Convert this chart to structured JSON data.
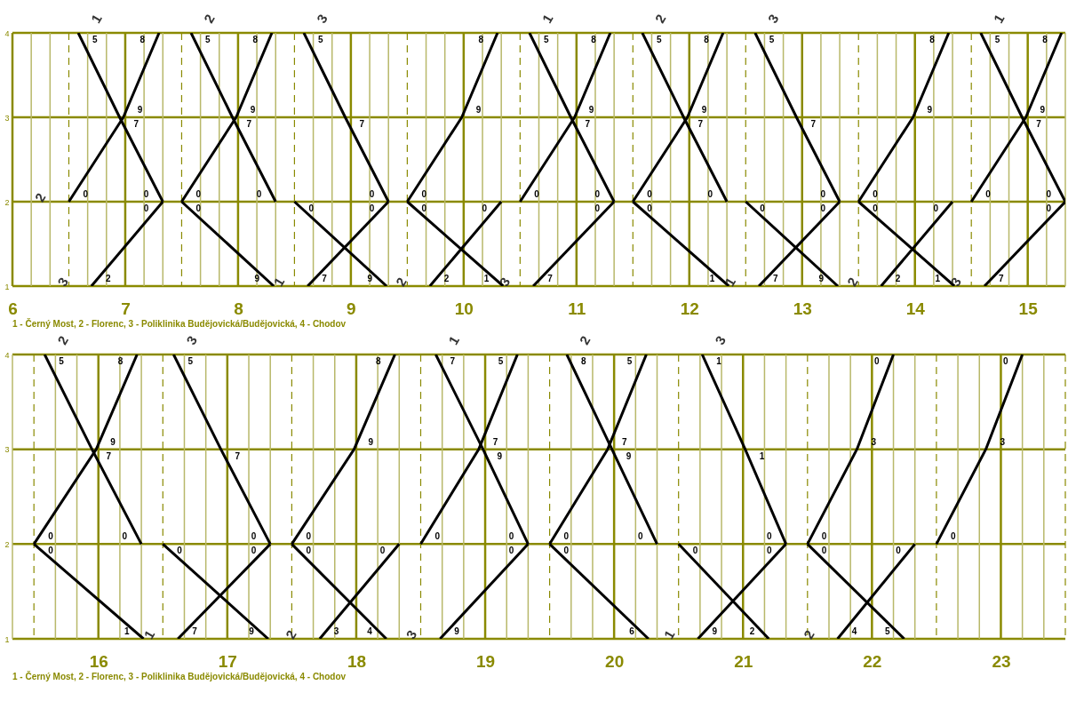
{
  "chart_data": [
    {
      "type": "line",
      "xlim": [
        6,
        15.3333
      ],
      "ylim": [
        1,
        4
      ],
      "grid": true,
      "legend": false,
      "xticks": [
        6,
        {
          "value": 6.1667,
          "label": null
        },
        {
          "value": 6.3333,
          "label": null
        },
        {
          "value": 6.5,
          "label": null
        },
        {
          "value": 6.6667,
          "label": null
        },
        {
          "value": 6.8333,
          "label": null
        },
        7,
        {
          "value": 7.1667,
          "label": null
        },
        {
          "value": 7.3333,
          "label": null
        },
        {
          "value": 7.5,
          "label": null
        },
        {
          "value": 7.6667,
          "label": null
        },
        {
          "value": 7.8333,
          "label": null
        },
        8,
        {
          "value": 8.1667,
          "label": null
        },
        {
          "value": 8.3333,
          "label": null
        },
        {
          "value": 8.5,
          "label": null
        },
        {
          "value": 8.6667,
          "label": null
        },
        {
          "value": 8.8333,
          "label": null
        },
        9,
        {
          "value": 9.1667,
          "label": null
        },
        {
          "value": 9.3333,
          "label": null
        },
        {
          "value": 9.5,
          "label": null
        },
        {
          "value": 9.6667,
          "label": null
        },
        {
          "value": 9.8333,
          "label": null
        },
        10,
        {
          "value": 10.1667,
          "label": null
        },
        {
          "value": 10.3333,
          "label": null
        },
        {
          "value": 10.5,
          "label": null
        },
        {
          "value": 10.6667,
          "label": null
        },
        {
          "value": 10.8333,
          "label": null
        },
        11,
        {
          "value": 11.1667,
          "label": null
        },
        {
          "value": 11.3333,
          "label": null
        },
        {
          "value": 11.5,
          "label": null
        },
        {
          "value": 11.6667,
          "label": null
        },
        {
          "value": 11.8333,
          "label": null
        },
        12,
        {
          "value": 12.1667,
          "label": null
        },
        {
          "value": 12.3333,
          "label": null
        },
        {
          "value": 12.5,
          "label": null
        },
        {
          "value": 12.6667,
          "label": null
        },
        {
          "value": 12.8333,
          "label": null
        },
        13,
        {
          "value": 13.1667,
          "label": null
        },
        {
          "value": 13.3333,
          "label": null
        },
        {
          "value": 13.5,
          "label": null
        },
        {
          "value": 13.6667,
          "label": null
        },
        {
          "value": 13.8333,
          "label": null
        },
        14,
        {
          "value": 14.1667,
          "label": null
        },
        {
          "value": 14.3333,
          "label": null
        },
        {
          "value": 14.5,
          "label": null
        },
        {
          "value": 14.6667,
          "label": null
        },
        {
          "value": 14.8333,
          "label": null
        },
        15,
        {
          "value": 15.1667,
          "label": null
        },
        {
          "value": 15.3333,
          "label": null
        }
      ],
      "yticks": [
        1,
        2,
        3,
        4
      ],
      "series": [
        {
          "name": "1",
          "color": "#000000",
          "x": [
            6.5833,
            6.95,
            7.3333
          ],
          "values": [
            4,
            3,
            2
          ]
        },
        {
          "name": "2",
          "color": "#000000",
          "x": [
            6.5,
            6.9833,
            7.3
          ],
          "values": [
            2,
            3,
            4
          ]
        },
        {
          "name": "3",
          "color": "#000000",
          "x": [
            6.7,
            7.3333
          ],
          "values": [
            1,
            2
          ]
        },
        {
          "name": "2",
          "color": "#000000",
          "x": [
            7.5833,
            7.95,
            8.3333
          ],
          "values": [
            4,
            3,
            2
          ]
        },
        {
          "color": "#000000",
          "x": [
            7.5,
            7.9833,
            8.3
          ],
          "values": [
            2,
            3,
            4
          ]
        },
        {
          "color": "#000000",
          "x": [
            7.5,
            8.3167
          ],
          "values": [
            2,
            1
          ]
        },
        {
          "name": "3",
          "color": "#000000",
          "x": [
            8.5833,
            8.95,
            9.3333
          ],
          "values": [
            4,
            3,
            2
          ]
        },
        {
          "color": "#000000",
          "x": [
            8.5,
            9.3167
          ],
          "values": [
            2,
            1
          ]
        },
        {
          "name": "1",
          "color": "#000000",
          "x": [
            8.6167,
            9.3333
          ],
          "values": [
            1,
            2
          ]
        },
        {
          "color": "#000000",
          "x": [
            9.5,
            9.9833,
            10.3
          ],
          "values": [
            2,
            3,
            4
          ]
        },
        {
          "color": "#000000",
          "x": [
            9.5,
            10.35
          ],
          "values": [
            2,
            1
          ]
        },
        {
          "name": "2",
          "color": "#000000",
          "x": [
            9.7,
            10.3333
          ],
          "values": [
            1,
            2
          ]
        },
        {
          "name": "1",
          "color": "#000000",
          "x": [
            10.5833,
            10.95,
            11.3333
          ],
          "values": [
            4,
            3,
            2
          ]
        },
        {
          "color": "#000000",
          "x": [
            10.5,
            10.9833,
            11.3
          ],
          "values": [
            2,
            3,
            4
          ]
        },
        {
          "name": "3",
          "color": "#000000",
          "x": [
            10.6167,
            11.3333
          ],
          "values": [
            1,
            2
          ]
        },
        {
          "name": "2",
          "color": "#000000",
          "x": [
            11.5833,
            11.95,
            12.3333
          ],
          "values": [
            4,
            3,
            2
          ]
        },
        {
          "color": "#000000",
          "x": [
            11.5,
            11.9833,
            12.3
          ],
          "values": [
            2,
            3,
            4
          ]
        },
        {
          "color": "#000000",
          "x": [
            11.5,
            12.35
          ],
          "values": [
            2,
            1
          ]
        },
        {
          "name": "3",
          "color": "#000000",
          "x": [
            12.5833,
            12.95,
            13.3333
          ],
          "values": [
            4,
            3,
            2
          ]
        },
        {
          "color": "#000000",
          "x": [
            12.5,
            13.3167
          ],
          "values": [
            2,
            1
          ]
        },
        {
          "name": "1",
          "color": "#000000",
          "x": [
            12.6167,
            13.3333
          ],
          "values": [
            1,
            2
          ]
        },
        {
          "color": "#000000",
          "x": [
            13.5,
            13.9833,
            14.3
          ],
          "values": [
            2,
            3,
            4
          ]
        },
        {
          "color": "#000000",
          "x": [
            13.5,
            14.35
          ],
          "values": [
            2,
            1
          ]
        },
        {
          "name": "2",
          "color": "#000000",
          "x": [
            13.7,
            14.3333
          ],
          "values": [
            1,
            2
          ]
        },
        {
          "name": "1",
          "color": "#000000",
          "x": [
            14.5833,
            14.95,
            15.3333
          ],
          "values": [
            4,
            3,
            2
          ]
        },
        {
          "color": "#000000",
          "x": [
            14.5,
            14.9833,
            15.3
          ],
          "values": [
            2,
            3,
            4
          ]
        },
        {
          "name": "3",
          "color": "#000000",
          "x": [
            14.6167,
            15.3333
          ],
          "values": [
            1,
            2
          ]
        }
      ],
      "annotations": [
        "1 - Černý Most, 2 - Florenc, 3 - Poliklinika Budějovická/Budějovická, 4 - Chodov",
        {
          "text": "5",
          "x": 6.5833,
          "y": 4
        },
        {
          "text": "7",
          "x": 6.95,
          "y": 3
        },
        {
          "text": "0",
          "x": 7.3333,
          "y": 2
        },
        {
          "text": "0",
          "x": 6.5,
          "y": 2
        },
        {
          "text": "9",
          "x": 6.9833,
          "y": 3
        },
        {
          "text": "8",
          "x": 7.3,
          "y": 4
        },
        {
          "text": "2",
          "x": 6.7,
          "y": 1
        },
        {
          "text": "0",
          "x": 7.3333,
          "y": 2
        },
        {
          "text": "5",
          "x": 7.5833,
          "y": 4
        },
        {
          "text": "7",
          "x": 7.95,
          "y": 3
        },
        {
          "text": "0",
          "x": 8.3333,
          "y": 2
        },
        {
          "text": "0",
          "x": 7.5,
          "y": 2
        },
        {
          "text": "9",
          "x": 7.9833,
          "y": 3
        },
        {
          "text": "8",
          "x": 8.3,
          "y": 4
        },
        {
          "text": "0",
          "x": 7.5,
          "y": 2
        },
        {
          "text": "9",
          "x": 8.3167,
          "y": 1
        },
        {
          "text": "5",
          "x": 8.5833,
          "y": 4
        },
        {
          "text": "7",
          "x": 8.95,
          "y": 3
        },
        {
          "text": "0",
          "x": 9.3333,
          "y": 2
        },
        {
          "text": "0",
          "x": 8.5,
          "y": 2
        },
        {
          "text": "9",
          "x": 9.3167,
          "y": 1
        },
        {
          "text": "7",
          "x": 8.6167,
          "y": 1
        },
        {
          "text": "0",
          "x": 9.3333,
          "y": 2
        },
        {
          "text": "0",
          "x": 9.5,
          "y": 2
        },
        {
          "text": "9",
          "x": 9.9833,
          "y": 3
        },
        {
          "text": "8",
          "x": 10.3,
          "y": 4
        },
        {
          "text": "0",
          "x": 9.5,
          "y": 2
        },
        {
          "text": "1",
          "x": 10.35,
          "y": 1
        },
        {
          "text": "2",
          "x": 9.7,
          "y": 1
        },
        {
          "text": "0",
          "x": 10.3333,
          "y": 2
        },
        {
          "text": "5",
          "x": 10.5833,
          "y": 4
        },
        {
          "text": "7",
          "x": 10.95,
          "y": 3
        },
        {
          "text": "0",
          "x": 11.3333,
          "y": 2
        },
        {
          "text": "0",
          "x": 10.5,
          "y": 2
        },
        {
          "text": "9",
          "x": 10.9833,
          "y": 3
        },
        {
          "text": "8",
          "x": 11.3,
          "y": 4
        },
        {
          "text": "7",
          "x": 10.6167,
          "y": 1
        },
        {
          "text": "0",
          "x": 11.3333,
          "y": 2
        },
        {
          "text": "5",
          "x": 11.5833,
          "y": 4
        },
        {
          "text": "7",
          "x": 11.95,
          "y": 3
        },
        {
          "text": "0",
          "x": 12.3333,
          "y": 2
        },
        {
          "text": "0",
          "x": 11.5,
          "y": 2
        },
        {
          "text": "9",
          "x": 11.9833,
          "y": 3
        },
        {
          "text": "8",
          "x": 12.3,
          "y": 4
        },
        {
          "text": "0",
          "x": 11.5,
          "y": 2
        },
        {
          "text": "1",
          "x": 12.35,
          "y": 1
        },
        {
          "text": "5",
          "x": 12.5833,
          "y": 4
        },
        {
          "text": "7",
          "x": 12.95,
          "y": 3
        },
        {
          "text": "0",
          "x": 13.3333,
          "y": 2
        },
        {
          "text": "0",
          "x": 12.5,
          "y": 2
        },
        {
          "text": "9",
          "x": 13.3167,
          "y": 1
        },
        {
          "text": "7",
          "x": 12.6167,
          "y": 1
        },
        {
          "text": "0",
          "x": 13.3333,
          "y": 2
        },
        {
          "text": "0",
          "x": 13.5,
          "y": 2
        },
        {
          "text": "9",
          "x": 13.9833,
          "y": 3
        },
        {
          "text": "8",
          "x": 14.3,
          "y": 4
        },
        {
          "text": "0",
          "x": 13.5,
          "y": 2
        },
        {
          "text": "1",
          "x": 14.35,
          "y": 1
        },
        {
          "text": "2",
          "x": 13.7,
          "y": 1
        },
        {
          "text": "0",
          "x": 14.3333,
          "y": 2
        },
        {
          "text": "5",
          "x": 14.5833,
          "y": 4
        },
        {
          "text": "7",
          "x": 14.95,
          "y": 3
        },
        {
          "text": "0",
          "x": 15.3333,
          "y": 2
        },
        {
          "text": "0",
          "x": 14.5,
          "y": 2
        },
        {
          "text": "9",
          "x": 14.9833,
          "y": 3
        },
        {
          "text": "8",
          "x": 15.3,
          "y": 4
        },
        {
          "text": "7",
          "x": 14.6167,
          "y": 1
        },
        {
          "text": "0",
          "x": 15.3333,
          "y": 2
        }
      ]
    },
    {
      "type": "line",
      "xlim": [
        15.3333,
        23.5
      ],
      "ylim": [
        1,
        4
      ],
      "grid": true,
      "legend": false,
      "xticks": [
        {
          "value": 15.3333,
          "label": null
        },
        {
          "value": 15.5,
          "label": null
        },
        {
          "value": 15.6667,
          "label": null
        },
        {
          "value": 15.8333,
          "label": null
        },
        16,
        {
          "value": 16.1667,
          "label": null
        },
        {
          "value": 16.3333,
          "label": null
        },
        {
          "value": 16.5,
          "label": null
        },
        {
          "value": 16.6667,
          "label": null
        },
        {
          "value": 16.8333,
          "label": null
        },
        17,
        {
          "value": 17.1667,
          "label": null
        },
        {
          "value": 17.3333,
          "label": null
        },
        {
          "value": 17.5,
          "label": null
        },
        {
          "value": 17.6667,
          "label": null
        },
        {
          "value": 17.8333,
          "label": null
        },
        18,
        {
          "value": 18.1667,
          "label": null
        },
        {
          "value": 18.3333,
          "label": null
        },
        {
          "value": 18.5,
          "label": null
        },
        {
          "value": 18.6667,
          "label": null
        },
        {
          "value": 18.8333,
          "label": null
        },
        19,
        {
          "value": 19.1667,
          "label": null
        },
        {
          "value": 19.3333,
          "label": null
        },
        {
          "value": 19.5,
          "label": null
        },
        {
          "value": 19.6667,
          "label": null
        },
        {
          "value": 19.8333,
          "label": null
        },
        20,
        {
          "value": 20.1667,
          "label": null
        },
        {
          "value": 20.3333,
          "label": null
        },
        {
          "value": 20.5,
          "label": null
        },
        {
          "value": 20.6667,
          "label": null
        },
        {
          "value": 20.8333,
          "label": null
        },
        21,
        {
          "value": 21.1667,
          "label": null
        },
        {
          "value": 21.3333,
          "label": null
        },
        {
          "value": 21.5,
          "label": null
        },
        {
          "value": 21.6667,
          "label": null
        },
        {
          "value": 21.8333,
          "label": null
        },
        22,
        {
          "value": 22.1667,
          "label": null
        },
        {
          "value": 22.3333,
          "label": null
        },
        {
          "value": 22.5,
          "label": null
        },
        {
          "value": 22.6667,
          "label": null
        },
        {
          "value": 22.8333,
          "label": null
        },
        23,
        {
          "value": 23.1667,
          "label": null
        },
        {
          "value": 23.3333,
          "label": null
        },
        {
          "value": 23.5,
          "label": null
        }
      ],
      "yticks": [
        1,
        2,
        3,
        4
      ],
      "series": [
        {
          "color": "#000000",
          "x": [
            15.5,
            15.9833,
            16.3
          ],
          "values": [
            2,
            3,
            4
          ]
        },
        {
          "name": "2",
          "color": "#000000",
          "x": [
            15.5833,
            15.95,
            16.3333
          ],
          "values": [
            4,
            3,
            2
          ]
        },
        {
          "color": "#000000",
          "x": [
            15.5,
            16.35
          ],
          "values": [
            2,
            1
          ]
        },
        {
          "name": "3",
          "color": "#000000",
          "x": [
            16.5833,
            16.95,
            17.3333
          ],
          "values": [
            4,
            3,
            2
          ]
        },
        {
          "color": "#000000",
          "x": [
            16.5,
            17.3167
          ],
          "values": [
            2,
            1
          ]
        },
        {
          "name": "1",
          "color": "#000000",
          "x": [
            16.6167,
            17.3333
          ],
          "values": [
            1,
            2
          ]
        },
        {
          "color": "#000000",
          "x": [
            17.5,
            17.9833,
            18.3
          ],
          "values": [
            2,
            3,
            4
          ]
        },
        {
          "color": "#000000",
          "x": [
            17.5,
            18.2333
          ],
          "values": [
            2,
            1
          ]
        },
        {
          "name": "2",
          "color": "#000000",
          "x": [
            17.7167,
            18.3333
          ],
          "values": [
            1,
            2
          ]
        },
        {
          "name": "1",
          "color": "#000000",
          "x": [
            18.6167,
            18.9833,
            19.3333
          ],
          "values": [
            4,
            3,
            2
          ]
        },
        {
          "color": "#000000",
          "x": [
            18.5,
            18.95,
            19.25
          ],
          "values": [
            2,
            3,
            4
          ]
        },
        {
          "name": "3",
          "color": "#000000",
          "x": [
            18.65,
            19.3333
          ],
          "values": [
            1,
            2
          ]
        },
        {
          "color": "#000000",
          "x": [
            19.5,
            19.95,
            20.25
          ],
          "values": [
            2,
            3,
            4
          ]
        },
        {
          "name": "2",
          "color": "#000000",
          "x": [
            19.6333,
            19.9833,
            20.3333
          ],
          "values": [
            4,
            3,
            2
          ]
        },
        {
          "color": "#000000",
          "x": [
            19.5,
            20.2667
          ],
          "values": [
            2,
            1
          ]
        },
        {
          "name": "3",
          "color": "#000000",
          "x": [
            20.6833,
            21.0167,
            21.3333
          ],
          "values": [
            4,
            3,
            2
          ]
        },
        {
          "color": "#000000",
          "x": [
            20.5,
            21.2
          ],
          "values": [
            2,
            1
          ]
        },
        {
          "name": "1",
          "color": "#000000",
          "x": [
            20.65,
            21.3333
          ],
          "values": [
            1,
            2
          ]
        },
        {
          "color": "#000000",
          "x": [
            21.5,
            21.8833,
            22.1667
          ],
          "values": [
            2,
            3,
            4
          ]
        },
        {
          "color": "#000000",
          "x": [
            21.5,
            22.25
          ],
          "values": [
            2,
            1
          ]
        },
        {
          "name": "2",
          "color": "#000000",
          "x": [
            21.7333,
            22.3333
          ],
          "values": [
            1,
            2
          ]
        },
        {
          "color": "#000000",
          "x": [
            22.5,
            22.8833,
            23.1667
          ],
          "values": [
            2,
            3,
            4
          ]
        }
      ],
      "annotations": [
        "1 - Černý Most, 2 - Florenc, 3 - Poliklinika Budějovická/Budějovická, 4 - Chodov",
        {
          "text": "0",
          "x": 15.5,
          "y": 2
        },
        {
          "text": "9",
          "x": 15.9833,
          "y": 3
        },
        {
          "text": "8",
          "x": 16.3,
          "y": 4
        },
        {
          "text": "5",
          "x": 15.5833,
          "y": 4
        },
        {
          "text": "7",
          "x": 15.95,
          "y": 3
        },
        {
          "text": "0",
          "x": 16.3333,
          "y": 2
        },
        {
          "text": "0",
          "x": 15.5,
          "y": 2
        },
        {
          "text": "1",
          "x": 16.35,
          "y": 1
        },
        {
          "text": "5",
          "x": 16.5833,
          "y": 4
        },
        {
          "text": "7",
          "x": 16.95,
          "y": 3
        },
        {
          "text": "0",
          "x": 17.3333,
          "y": 2
        },
        {
          "text": "0",
          "x": 16.5,
          "y": 2
        },
        {
          "text": "9",
          "x": 17.3167,
          "y": 1
        },
        {
          "text": "7",
          "x": 16.6167,
          "y": 1
        },
        {
          "text": "0",
          "x": 17.3333,
          "y": 2
        },
        {
          "text": "0",
          "x": 17.5,
          "y": 2
        },
        {
          "text": "9",
          "x": 17.9833,
          "y": 3
        },
        {
          "text": "8",
          "x": 18.3,
          "y": 4
        },
        {
          "text": "0",
          "x": 17.5,
          "y": 2
        },
        {
          "text": "4",
          "x": 18.2333,
          "y": 1
        },
        {
          "text": "3",
          "x": 17.7167,
          "y": 1
        },
        {
          "text": "0",
          "x": 18.3333,
          "y": 2
        },
        {
          "text": "7",
          "x": 18.6167,
          "y": 4
        },
        {
          "text": "9",
          "x": 18.9833,
          "y": 3
        },
        {
          "text": "0",
          "x": 19.3333,
          "y": 2
        },
        {
          "text": "0",
          "x": 18.5,
          "y": 2
        },
        {
          "text": "7",
          "x": 18.95,
          "y": 3
        },
        {
          "text": "5",
          "x": 19.25,
          "y": 4
        },
        {
          "text": "9",
          "x": 18.65,
          "y": 1
        },
        {
          "text": "0",
          "x": 19.3333,
          "y": 2
        },
        {
          "text": "0",
          "x": 19.5,
          "y": 2
        },
        {
          "text": "7",
          "x": 19.95,
          "y": 3
        },
        {
          "text": "5",
          "x": 20.25,
          "y": 4
        },
        {
          "text": "8",
          "x": 19.6333,
          "y": 4
        },
        {
          "text": "9",
          "x": 19.9833,
          "y": 3
        },
        {
          "text": "0",
          "x": 20.3333,
          "y": 2
        },
        {
          "text": "0",
          "x": 19.5,
          "y": 2
        },
        {
          "text": "6",
          "x": 20.2667,
          "y": 1
        },
        {
          "text": "1",
          "x": 20.6833,
          "y": 4
        },
        {
          "text": "1",
          "x": 21.0167,
          "y": 3
        },
        {
          "text": "0",
          "x": 21.3333,
          "y": 2
        },
        {
          "text": "0",
          "x": 20.5,
          "y": 2
        },
        {
          "text": "2",
          "x": 21.2,
          "y": 1
        },
        {
          "text": "9",
          "x": 20.65,
          "y": 1
        },
        {
          "text": "0",
          "x": 21.3333,
          "y": 2
        },
        {
          "text": "0",
          "x": 21.5,
          "y": 2
        },
        {
          "text": "3",
          "x": 21.8833,
          "y": 3
        },
        {
          "text": "0",
          "x": 22.1667,
          "y": 4
        },
        {
          "text": "0",
          "x": 21.5,
          "y": 2
        },
        {
          "text": "5",
          "x": 22.25,
          "y": 1
        },
        {
          "text": "4",
          "x": 21.7333,
          "y": 1
        },
        {
          "text": "0",
          "x": 22.3333,
          "y": 2
        },
        {
          "text": "0",
          "x": 22.5,
          "y": 2
        },
        {
          "text": "3",
          "x": 22.8833,
          "y": 3
        },
        {
          "text": "0",
          "x": 23.1667,
          "y": 4
        }
      ]
    }
  ]
}
